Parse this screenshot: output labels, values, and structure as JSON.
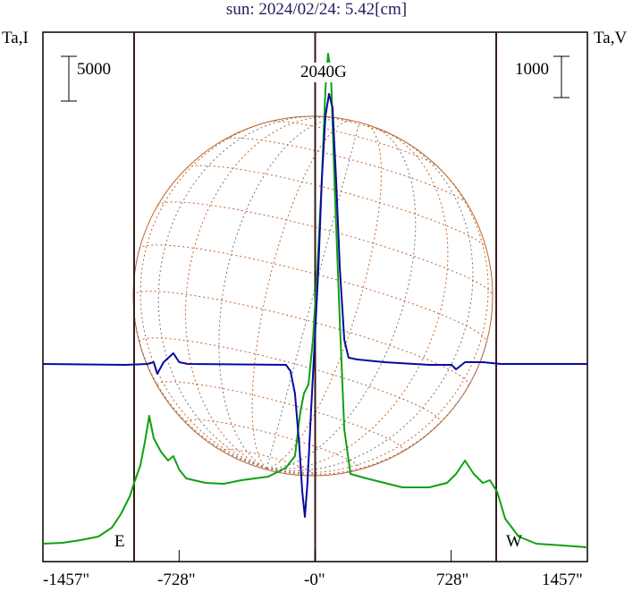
{
  "chart_data": {
    "type": "line",
    "title": "sun: 2024/02/24: 5.42[cm]",
    "left_axis_label": "Ta,I",
    "right_axis_label": "Ta,V",
    "left_scale_bar": {
      "label": "5000",
      "value": 5000
    },
    "right_scale_bar": {
      "label": "1000",
      "value": 1000
    },
    "annotation": "2040G",
    "east_label": "E",
    "west_label": "W",
    "xlim": [
      -1457,
      1457
    ],
    "x_ticks": [
      {
        "value": -1457,
        "label": "-1457\""
      },
      {
        "value": -728,
        "label": "-728\""
      },
      {
        "value": 0,
        "label": "-0\""
      },
      {
        "value": 728,
        "label": "728\""
      },
      {
        "value": 1457,
        "label": "1457\""
      }
    ],
    "limb_lines": [
      -969,
      0,
      969
    ],
    "colors": {
      "I": "#10a010",
      "V": "#0a0aa0",
      "grid": "#c0642a",
      "frame": "#3a1a1a",
      "title": "#20205e"
    },
    "series": [
      {
        "name": "I",
        "axis": "left",
        "x": [
          -1457,
          -1352,
          -1256,
          -1160,
          -1088,
          -1040,
          -992,
          -969,
          -935,
          -912,
          -888,
          -864,
          -826,
          -787,
          -759,
          -728,
          -690,
          -586,
          -490,
          -395,
          -251,
          -203,
          -156,
          -108,
          -79,
          -60,
          -36,
          -12,
          12,
          36,
          55,
          69,
          84,
          103,
          132,
          156,
          189,
          275,
          371,
          467,
          610,
          706,
          754,
          802,
          849,
          897,
          935,
          974,
          1017,
          1089,
          1184,
          1328,
          1457
        ],
        "y": [
          200,
          300,
          600,
          1000,
          2000,
          3500,
          5500,
          7000,
          9000,
          11500,
          14500,
          12000,
          10500,
          9500,
          10000,
          8500,
          7500,
          7000,
          6900,
          7300,
          7700,
          8200,
          8700,
          10000,
          15000,
          17000,
          18000,
          23000,
          31000,
          41000,
          51000,
          55000,
          53000,
          41000,
          25000,
          13000,
          8000,
          7500,
          7000,
          6500,
          6500,
          7000,
          8000,
          9500,
          8000,
          7000,
          7300,
          6000,
          3000,
          1000,
          200,
          0,
          -200
        ]
      },
      {
        "name": "V",
        "axis": "right",
        "x": [
          -1457,
          -1017,
          -897,
          -864,
          -845,
          -811,
          -759,
          -728,
          -681,
          -156,
          -132,
          -108,
          -84,
          -69,
          -55,
          -41,
          -22,
          -2,
          17,
          36,
          55,
          74,
          93,
          112,
          132,
          156,
          179,
          227,
          371,
          610,
          730,
          754,
          802,
          897,
          993,
          1457
        ],
        "y": [
          0,
          -22,
          0,
          43,
          -239,
          43,
          260,
          43,
          0,
          -22,
          -174,
          -716,
          -2018,
          -3103,
          -3711,
          -2886,
          -1150,
          586,
          2322,
          4492,
          6011,
          6553,
          6228,
          4492,
          2322,
          586,
          152,
          109,
          43,
          -22,
          -22,
          -130,
          43,
          43,
          0,
          0
        ]
      }
    ]
  }
}
